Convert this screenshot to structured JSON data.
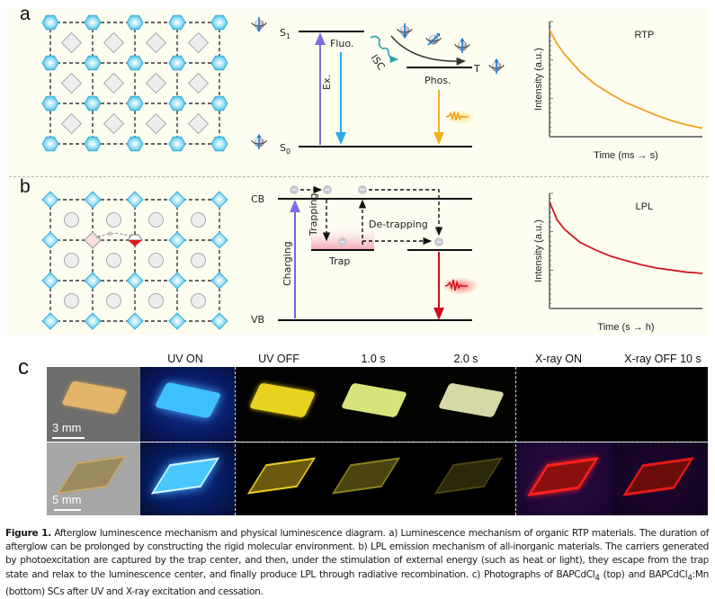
{
  "panels": {
    "a": {
      "letter": "a",
      "lattice": {
        "rows": 4,
        "cols": 5,
        "node_shape": "hexagon",
        "interstitial_shape": "diamond"
      },
      "energy_diagram": {
        "levels": {
          "s1": "S",
          "s1_sub": "1",
          "s0": "S",
          "s0_sub": "0",
          "t": "T"
        },
        "labels": {
          "excitation": "Ex.",
          "fluorescence": "Fluo.",
          "isc": "ISC",
          "phosphorescence": "Phos."
        }
      },
      "chart": {
        "title": "RTP",
        "ylabel": "Intensity (a.u.)",
        "xlabel": "Time (ms → s)"
      }
    },
    "b": {
      "letter": "b",
      "lattice": {
        "rows": 4,
        "cols": 5,
        "node_shape": "diamond",
        "interstitial_shape": "circle",
        "electron_label": "e"
      },
      "energy_diagram": {
        "levels": {
          "cb": "CB",
          "vb": "VB"
        },
        "labels": {
          "charging": "Charging",
          "trapping": "Trapping",
          "de_trapping": "De-trapping",
          "trap": "Trap"
        }
      },
      "chart": {
        "title": "LPL",
        "ylabel": "Intensity (a.u.)",
        "xlabel": "Time (s → h)"
      }
    },
    "c": {
      "letter": "c",
      "column_headers": [
        "",
        "UV ON",
        "UV OFF",
        "1.0 s",
        "2.0 s",
        "X-ray ON",
        "X-ray OFF 10 s"
      ],
      "scale_bars": {
        "top": "3 mm",
        "bottom": "5 mm"
      },
      "rows": [
        "BAPCdCl4 (top)",
        "BAPCdCl4:Mn (bottom)"
      ]
    }
  },
  "chart_data": [
    {
      "type": "line",
      "title": "RTP",
      "xlabel": "Time (ms → s)",
      "ylabel": "Intensity (a.u.)",
      "x": [
        0,
        0.05,
        0.1,
        0.2,
        0.3,
        0.4,
        0.5,
        0.6,
        0.7,
        0.8,
        0.9,
        1.0
      ],
      "series": [
        {
          "name": "RTP",
          "color": "#f0a020",
          "values": [
            1.0,
            0.87,
            0.77,
            0.61,
            0.49,
            0.4,
            0.32,
            0.26,
            0.2,
            0.15,
            0.11,
            0.08
          ]
        }
      ],
      "xlim": [
        0,
        1
      ],
      "ylim": [
        0,
        1.08
      ],
      "grid": false,
      "legend": "none"
    },
    {
      "type": "line",
      "title": "LPL",
      "xlabel": "Time (s → h)",
      "ylabel": "Intensity (a.u.)",
      "x": [
        0,
        0.05,
        0.1,
        0.2,
        0.3,
        0.4,
        0.5,
        0.6,
        0.7,
        0.8,
        0.9,
        1.0
      ],
      "series": [
        {
          "name": "LPL",
          "color": "#cc1a22",
          "values": [
            1.0,
            0.83,
            0.74,
            0.62,
            0.55,
            0.49,
            0.45,
            0.41,
            0.38,
            0.36,
            0.34,
            0.33
          ]
        }
      ],
      "xlim": [
        0,
        1
      ],
      "ylim": [
        0,
        1.08
      ],
      "grid": false,
      "legend": "none"
    }
  ],
  "caption": {
    "label": "Figure 1.",
    "text_1": " Afterglow luminescence mechanism and physical luminescence diagram. a) Luminescence mechanism of organic RTP materials. The duration of afterglow can be prolonged by constructing the rigid molecular environment. b) LPL emission mechanism of all-inorganic materials. The carriers generated by photoexcitation are captured by the trap center, and then, under the stimulation of external energy (such as heat or light), they escape from the trap state and relax to the luminescence center, and finally produce LPL through radiative recombination. c) Photographs of BAPCdCl",
    "sub_1": "4",
    "text_2": " (top) and BAPCdCl",
    "sub_2": "4",
    "text_3": ":Mn (bottom) SCs after UV and X-ray excitation and cessation."
  },
  "colors": {
    "panel_bg": "#fdfdf0",
    "node_blue": "#4fc3e8",
    "excitation_arrow": "#7a6ee0",
    "fluo_arrow": "#2aa8e8",
    "phos_arrow": "#f0b020",
    "lpl_arrow": "#c8101a",
    "rtp_curve": "#f0a020",
    "lpl_curve": "#cc1a22"
  }
}
